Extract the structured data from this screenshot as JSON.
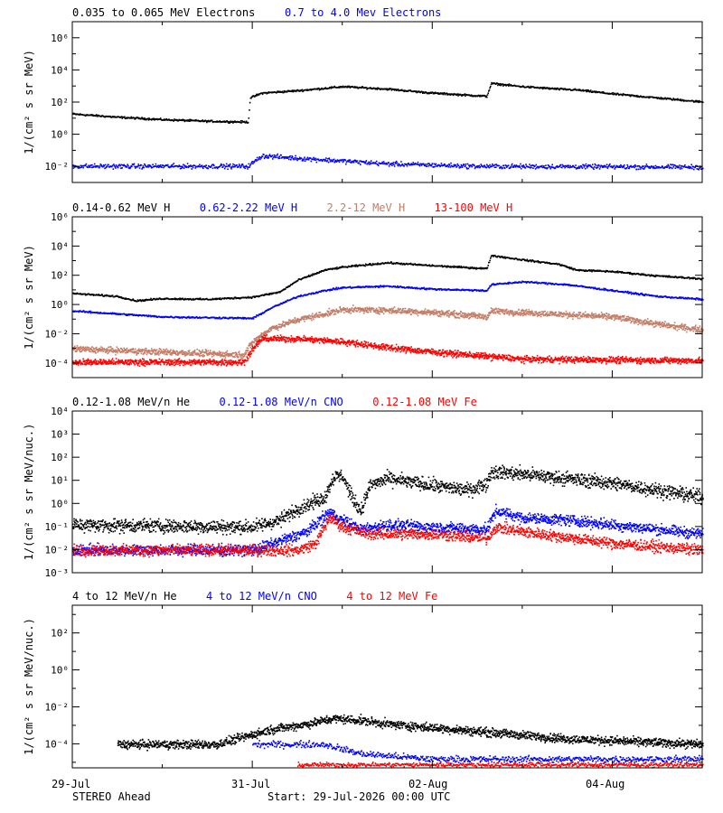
{
  "footer": {
    "spacecraft": "STEREO Ahead",
    "start": "Start: 29-Jul-2026 00:00 UTC"
  },
  "x_axis": {
    "range_days": [
      0,
      7.0
    ],
    "ticks": [
      {
        "value": 0,
        "label": "29-Jul"
      },
      {
        "value": 2,
        "label": "31-Jul"
      },
      {
        "value": 4,
        "label": "02-Aug"
      },
      {
        "value": 6,
        "label": "04-Aug"
      }
    ]
  },
  "colors": {
    "black": "#000000",
    "blue": "#0000ff",
    "tan": "#c47e68",
    "red": "#ff0000"
  },
  "chart_data": [
    {
      "type": "scatter",
      "ylabel": "1/(cm² s sr MeV)",
      "yscale": "log",
      "ylim_exp": [
        -3,
        7
      ],
      "ticks_exp": [
        -2,
        0,
        2,
        4,
        6
      ],
      "legend": [
        {
          "name": "0.035 to 0.065 MeV Electrons",
          "color": "#000000"
        },
        {
          "name": "0.7 to 4.0 Mev Electrons",
          "color": "#0000ff"
        }
      ],
      "series": [
        {
          "name": "0.035 to 0.065 MeV Electrons",
          "color": "#000000",
          "spread": 0.05,
          "points": [
            [
              0,
              1.3
            ],
            [
              0.5,
              1.1
            ],
            [
              1.0,
              0.95
            ],
            [
              1.5,
              0.85
            ],
            [
              1.95,
              0.8
            ],
            [
              1.97,
              2.3
            ],
            [
              2.1,
              2.6
            ],
            [
              2.5,
              2.75
            ],
            [
              3.0,
              3.0
            ],
            [
              3.5,
              2.85
            ],
            [
              4.0,
              2.6
            ],
            [
              4.6,
              2.4
            ],
            [
              4.65,
              3.2
            ],
            [
              5.0,
              3.0
            ],
            [
              5.4,
              2.85
            ],
            [
              5.6,
              2.8
            ],
            [
              6.0,
              2.55
            ],
            [
              6.5,
              2.3
            ],
            [
              7.0,
              2.05
            ]
          ]
        },
        {
          "name": "0.7 to 4.0 Mev Electrons",
          "color": "#0000ff",
          "spread": 0.12,
          "points": [
            [
              0,
              -1.95
            ],
            [
              1.95,
              -1.95
            ],
            [
              2.1,
              -1.3
            ],
            [
              2.5,
              -1.45
            ],
            [
              3.5,
              -1.8
            ],
            [
              4.5,
              -1.95
            ],
            [
              7.0,
              -2.0
            ]
          ]
        }
      ]
    },
    {
      "type": "scatter",
      "ylabel": "1/(cm² s sr MeV)",
      "yscale": "log",
      "ylim_exp": [
        -5,
        6
      ],
      "ticks_exp": [
        -4,
        -2,
        0,
        2,
        4,
        6
      ],
      "legend": [
        {
          "name": "0.14-0.62 MeV H",
          "color": "#000000"
        },
        {
          "name": "0.62-2.22 MeV H",
          "color": "#0000ff"
        },
        {
          "name": "2.2-12 MeV H",
          "color": "#c47e68"
        },
        {
          "name": "13-100 MeV H",
          "color": "#ff0000"
        }
      ],
      "series": [
        {
          "name": "0.14-0.62 MeV H",
          "color": "#000000",
          "spread": 0.05,
          "points": [
            [
              0,
              0.8
            ],
            [
              0.5,
              0.6
            ],
            [
              0.7,
              0.3
            ],
            [
              1.0,
              0.45
            ],
            [
              1.5,
              0.4
            ],
            [
              2.0,
              0.55
            ],
            [
              2.3,
              0.9
            ],
            [
              2.5,
              1.7
            ],
            [
              2.8,
              2.4
            ],
            [
              3.0,
              2.6
            ],
            [
              3.5,
              2.9
            ],
            [
              4.0,
              2.7
            ],
            [
              4.6,
              2.5
            ],
            [
              4.65,
              3.4
            ],
            [
              5.0,
              3.1
            ],
            [
              5.4,
              2.8
            ],
            [
              5.6,
              2.4
            ],
            [
              6.0,
              2.3
            ],
            [
              6.5,
              2.0
            ],
            [
              7.0,
              1.8
            ]
          ]
        },
        {
          "name": "0.62-2.22 MeV H",
          "color": "#0000ff",
          "spread": 0.05,
          "points": [
            [
              0,
              -0.4
            ],
            [
              0.5,
              -0.6
            ],
            [
              1.0,
              -0.8
            ],
            [
              1.5,
              -0.85
            ],
            [
              2.0,
              -0.9
            ],
            [
              2.2,
              -0.2
            ],
            [
              2.5,
              0.6
            ],
            [
              2.8,
              1.0
            ],
            [
              3.0,
              1.2
            ],
            [
              3.5,
              1.3
            ],
            [
              4.0,
              1.1
            ],
            [
              4.6,
              1.0
            ],
            [
              4.65,
              1.4
            ],
            [
              5.0,
              1.6
            ],
            [
              5.5,
              1.4
            ],
            [
              6.0,
              1.0
            ],
            [
              6.5,
              0.6
            ],
            [
              7.0,
              0.4
            ]
          ]
        },
        {
          "name": "2.2-12 MeV H",
          "color": "#c47e68",
          "spread": 0.18,
          "points": [
            [
              0,
              -3.0
            ],
            [
              1.0,
              -3.2
            ],
            [
              1.9,
              -3.4
            ],
            [
              2.0,
              -2.5
            ],
            [
              2.2,
              -1.6
            ],
            [
              2.5,
              -1.0
            ],
            [
              2.8,
              -0.6
            ],
            [
              3.0,
              -0.3
            ],
            [
              3.5,
              -0.35
            ],
            [
              4.0,
              -0.5
            ],
            [
              4.6,
              -0.8
            ],
            [
              4.65,
              -0.4
            ],
            [
              5.0,
              -0.5
            ],
            [
              6.0,
              -0.8
            ],
            [
              6.5,
              -1.3
            ],
            [
              7.0,
              -1.7
            ]
          ]
        },
        {
          "name": "13-100 MeV H",
          "color": "#ff0000",
          "spread": 0.18,
          "points": [
            [
              0,
              -3.9
            ],
            [
              1.9,
              -3.9
            ],
            [
              2.0,
              -3.0
            ],
            [
              2.1,
              -2.3
            ],
            [
              2.5,
              -2.3
            ],
            [
              3.0,
              -2.5
            ],
            [
              3.5,
              -2.9
            ],
            [
              4.0,
              -3.2
            ],
            [
              4.6,
              -3.5
            ],
            [
              5.0,
              -3.7
            ],
            [
              7.0,
              -3.8
            ]
          ]
        }
      ]
    },
    {
      "type": "scatter",
      "ylabel": "1/(cm² s sr MeV/nuc.)",
      "yscale": "log",
      "ylim_exp": [
        -3,
        4
      ],
      "ticks_exp": [
        -3,
        -2,
        -1,
        0,
        1,
        2,
        3,
        4
      ],
      "legend": [
        {
          "name": "0.12-1.08 MeV/n He",
          "color": "#000000"
        },
        {
          "name": "0.12-1.08 MeV/n CNO",
          "color": "#0000ff"
        },
        {
          "name": "0.12-1.08 MeV Fe",
          "color": "#ff0000"
        }
      ],
      "series": [
        {
          "name": "0.12-1.08 MeV/n He",
          "color": "#000000",
          "spread": 0.25,
          "points": [
            [
              0,
              -0.9
            ],
            [
              2.0,
              -1.0
            ],
            [
              2.3,
              -0.7
            ],
            [
              2.5,
              -0.2
            ],
            [
              2.8,
              0.3
            ],
            [
              2.9,
              1.2
            ],
            [
              3.0,
              1.2
            ],
            [
              3.1,
              0.3
            ],
            [
              3.2,
              -0.3
            ],
            [
              3.3,
              0.8
            ],
            [
              3.5,
              1.1
            ],
            [
              4.0,
              0.8
            ],
            [
              4.4,
              0.6
            ],
            [
              4.6,
              0.9
            ],
            [
              4.65,
              1.4
            ],
            [
              5.0,
              1.3
            ],
            [
              5.5,
              1.1
            ],
            [
              6.0,
              0.9
            ],
            [
              6.5,
              0.6
            ],
            [
              7.0,
              0.3
            ]
          ]
        },
        {
          "name": "0.12-1.08 MeV/n CNO",
          "color": "#0000ff",
          "spread": 0.2,
          "points": [
            [
              0,
              -2.0
            ],
            [
              2.0,
              -2.0
            ],
            [
              2.3,
              -1.6
            ],
            [
              2.6,
              -1.2
            ],
            [
              2.85,
              -0.35
            ],
            [
              3.0,
              -0.7
            ],
            [
              3.2,
              -1.1
            ],
            [
              3.5,
              -0.9
            ],
            [
              4.0,
              -1.0
            ],
            [
              4.6,
              -1.1
            ],
            [
              4.7,
              -0.3
            ],
            [
              5.0,
              -0.6
            ],
            [
              5.5,
              -0.7
            ],
            [
              6.0,
              -0.9
            ],
            [
              6.5,
              -1.1
            ],
            [
              7.0,
              -1.3
            ]
          ]
        },
        {
          "name": "0.12-1.08 MeV Fe",
          "color": "#ff0000",
          "spread": 0.2,
          "points": [
            [
              0,
              -2.0
            ],
            [
              2.5,
              -2.0
            ],
            [
              2.7,
              -1.7
            ],
            [
              2.85,
              -0.6
            ],
            [
              3.0,
              -1.0
            ],
            [
              3.3,
              -1.3
            ],
            [
              4.0,
              -1.3
            ],
            [
              4.6,
              -1.5
            ],
            [
              4.7,
              -1.0
            ],
            [
              5.0,
              -1.2
            ],
            [
              6.0,
              -1.7
            ],
            [
              7.0,
              -2.0
            ]
          ]
        }
      ]
    },
    {
      "type": "scatter",
      "ylabel": "1/(cm² s sr MeV/nuc.)",
      "yscale": "log",
      "ylim_exp": [
        -5.3,
        3.5
      ],
      "ticks_exp": [
        -4,
        -2,
        0,
        2
      ],
      "legend": [
        {
          "name": "4 to 12 MeV/n He",
          "color": "#000000"
        },
        {
          "name": "4 to 12 MeV/n CNO",
          "color": "#0000ff"
        },
        {
          "name": "4 to 12 MeV Fe",
          "color": "#ff0000"
        }
      ],
      "series": [
        {
          "name": "4 to 12 MeV/n He",
          "color": "#000000",
          "spread": 0.2,
          "points": [
            [
              0.5,
              -4.0
            ],
            [
              1.6,
              -4.0
            ],
            [
              2.2,
              -3.2
            ],
            [
              2.6,
              -2.9
            ],
            [
              2.9,
              -2.6
            ],
            [
              3.2,
              -2.7
            ],
            [
              3.5,
              -2.9
            ],
            [
              4.0,
              -3.1
            ],
            [
              4.5,
              -3.3
            ],
            [
              5.0,
              -3.5
            ],
            [
              5.5,
              -3.7
            ],
            [
              6.0,
              -3.8
            ],
            [
              6.5,
              -3.9
            ],
            [
              7.0,
              -4.0
            ]
          ]
        },
        {
          "name": "4 to 12 MeV/n CNO",
          "color": "#0000ff",
          "spread": 0.15,
          "points": [
            [
              2.0,
              -4.0
            ],
            [
              2.8,
              -4.0
            ],
            [
              3.2,
              -4.5
            ],
            [
              4.0,
              -4.8
            ],
            [
              5.0,
              -4.8
            ],
            [
              7.0,
              -4.8
            ]
          ]
        },
        {
          "name": "4 to 12 MeV Fe",
          "color": "#ff0000",
          "spread": 0.1,
          "points": [
            [
              2.5,
              -5.1
            ],
            [
              7.0,
              -5.1
            ]
          ]
        }
      ]
    }
  ]
}
